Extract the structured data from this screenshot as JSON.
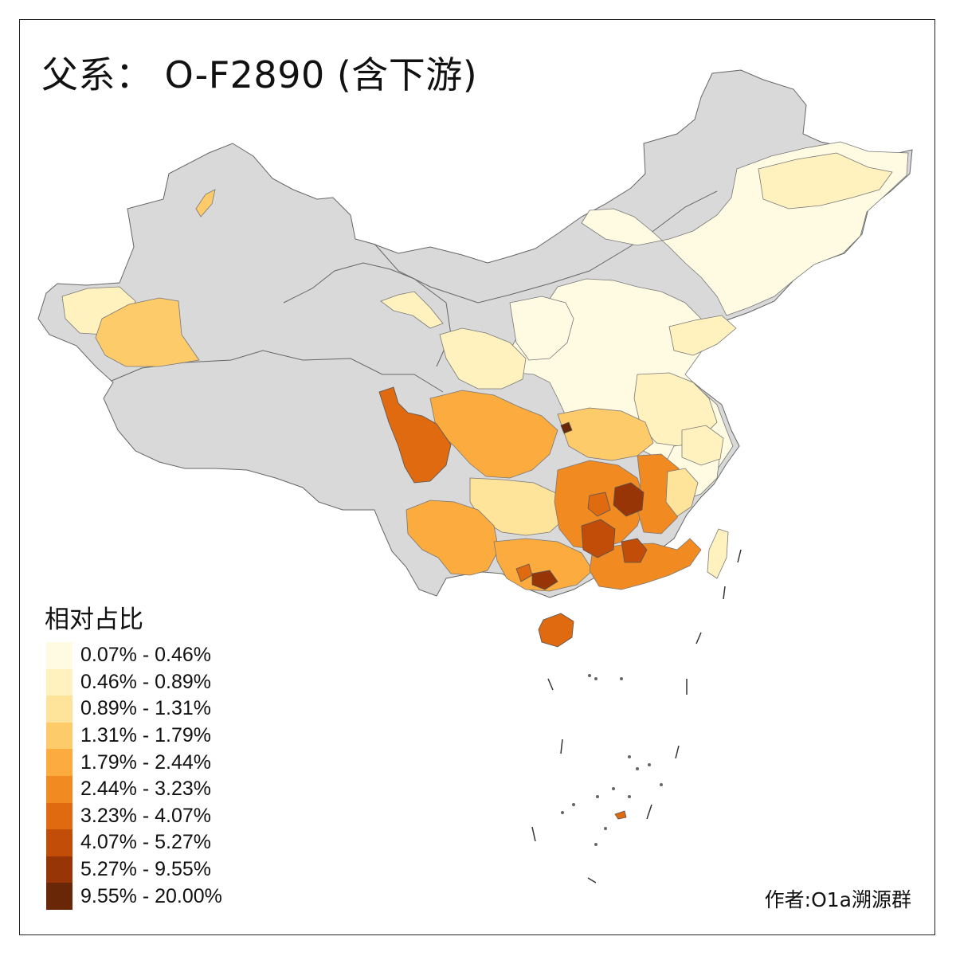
{
  "map": {
    "title": "父系： O-F2890 (含下游)",
    "legend_title": "相对占比",
    "legend": [
      {
        "label": "0.07% - 0.46%",
        "color": "#FFFBE3"
      },
      {
        "label": "0.46% - 0.89%",
        "color": "#FFF2BE"
      },
      {
        "label": "0.89% - 1.31%",
        "color": "#FEE39B"
      },
      {
        "label": "1.31% - 1.79%",
        "color": "#FECB6A"
      },
      {
        "label": "1.79% - 2.44%",
        "color": "#FCAB3E"
      },
      {
        "label": "2.44% - 3.23%",
        "color": "#F28A22"
      },
      {
        "label": "3.23% - 4.07%",
        "color": "#E06A10"
      },
      {
        "label": "4.07% - 5.27%",
        "color": "#C24D08"
      },
      {
        "label": "5.27% - 9.55%",
        "color": "#983506"
      },
      {
        "label": "9.55% - 20.00%",
        "color": "#6A2708"
      }
    ],
    "no_data_color": "#D9D9D9",
    "credit": "作者:O1a溯源群"
  }
}
